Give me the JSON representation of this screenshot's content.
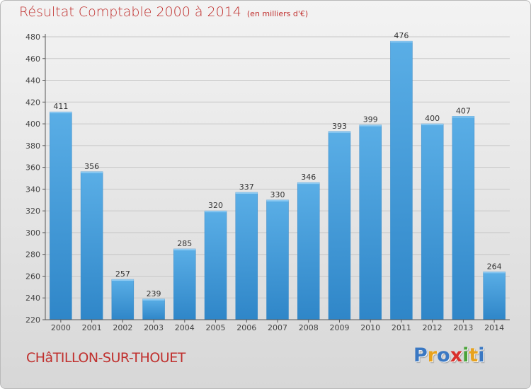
{
  "title": {
    "main": "Résultat Comptable 2000 à 2014",
    "unit": "(en milliers d'€)"
  },
  "commune": "CHâTILLON-SUR-THOUET",
  "logo": {
    "text": "Proxiti",
    "letters": [
      {
        "char": "P",
        "color": "#3a78c3"
      },
      {
        "char": "r",
        "color": "#e8a21c"
      },
      {
        "char": "o",
        "color": "#3a78c3"
      },
      {
        "char": "x",
        "color": "#d9312c"
      },
      {
        "char": "i",
        "color": "#4aa33a"
      },
      {
        "char": "t",
        "color": "#e8a21c"
      },
      {
        "char": "i",
        "color": "#3a78c3"
      }
    ]
  },
  "colors": {
    "bar_top": "#5aaee6",
    "bar_bottom": "#2f86c8",
    "title": "#c0302e",
    "grid": "#c8c8c8"
  },
  "chart_data": {
    "type": "bar",
    "categories": [
      "2000",
      "2001",
      "2002",
      "2003",
      "2004",
      "2005",
      "2006",
      "2007",
      "2008",
      "2009",
      "2010",
      "2011",
      "2012",
      "2013",
      "2014"
    ],
    "values": [
      411,
      356,
      257,
      239,
      285,
      320,
      337,
      330,
      346,
      393,
      399,
      476,
      400,
      407,
      264
    ],
    "ylim": [
      220,
      480
    ],
    "yticks": [
      220,
      240,
      260,
      280,
      300,
      320,
      340,
      360,
      380,
      400,
      420,
      440,
      460,
      480
    ],
    "grid": true,
    "title": "Résultat Comptable 2000 à 2014",
    "subtitle": "(en milliers d'€)"
  }
}
